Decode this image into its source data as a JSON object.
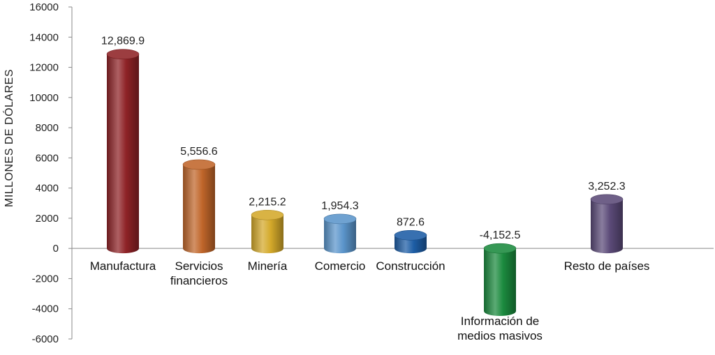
{
  "chart_data": {
    "type": "bar",
    "title": "",
    "xlabel": "",
    "ylabel": "MILLONES DE DÓLARES",
    "ylim": [
      -6000,
      16000
    ],
    "yticks": [
      16000,
      14000,
      12000,
      10000,
      8000,
      6000,
      4000,
      2000,
      0,
      -2000,
      -4000,
      -6000
    ],
    "categories": [
      [
        "Manufactura"
      ],
      [
        "Servicios",
        "financieros"
      ],
      [
        "Minería"
      ],
      [
        "Comercio"
      ],
      [
        "Construcción"
      ],
      [
        "Información de",
        "medios masivos"
      ],
      [
        "Resto de países"
      ]
    ],
    "values": [
      12869.9,
      5556.6,
      2215.2,
      1954.3,
      872.6,
      -4152.5,
      3252.3
    ],
    "value_labels": [
      "12,869.9",
      "5,556.6",
      "2,215.2",
      "1,954.3",
      "872.6",
      "-4,152.5",
      "3,252.3"
    ],
    "colors": [
      "#8e2226",
      "#c0662a",
      "#d4a92a",
      "#5b95cb",
      "#1d5da5",
      "#1b8a3e",
      "#5b4a78"
    ],
    "grid": false,
    "legend": "none"
  }
}
